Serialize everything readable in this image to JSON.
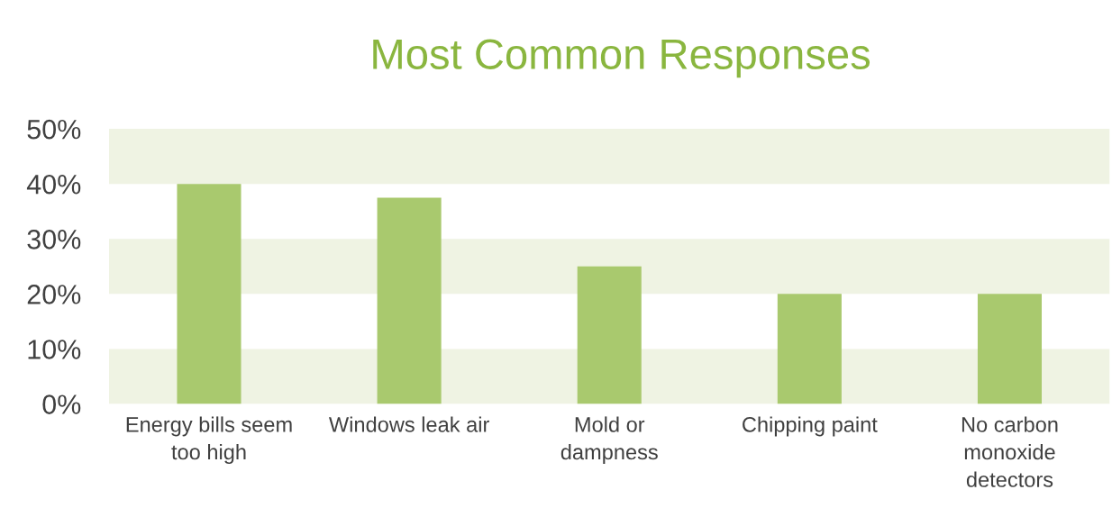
{
  "chart_data": {
    "type": "bar",
    "title": "Most Common Responses",
    "categories": [
      "Energy bills seem\ntoo high",
      "Windows leak air",
      "Mold or\ndampness",
      "Chipping paint",
      "No carbon\nmonoxide\ndetectors"
    ],
    "values": [
      40,
      37.5,
      25,
      20,
      20
    ],
    "color": "#a9c96e",
    "ylim": [
      0,
      50
    ],
    "yticks": [
      {
        "value": 0,
        "label": "0%"
      },
      {
        "value": 10,
        "label": "10%"
      },
      {
        "value": 20,
        "label": "20%"
      },
      {
        "value": 30,
        "label": "30%"
      },
      {
        "value": 40,
        "label": "40%"
      },
      {
        "value": 50,
        "label": "50%"
      }
    ],
    "bands": [
      {
        "axis": "y",
        "from": 0,
        "to": 10,
        "color": "#eff3e3"
      },
      {
        "axis": "y",
        "from": 20,
        "to": 30,
        "color": "#eff3e3"
      },
      {
        "axis": "y",
        "from": 40,
        "to": 50,
        "color": "#eff3e3"
      }
    ],
    "grid": false
  }
}
